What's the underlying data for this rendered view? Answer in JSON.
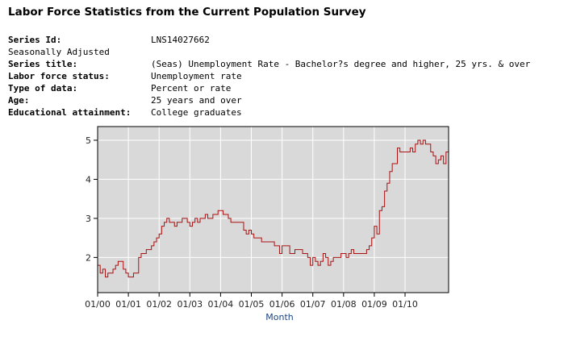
{
  "page": {
    "title": "Labor Force Statistics from the Current Population Survey"
  },
  "series_info": [
    {
      "label": "Series Id:",
      "value": "LNS14027662",
      "bold": true
    },
    {
      "label": "Seasonally Adjusted",
      "value": "",
      "bold": false
    },
    {
      "label": "Series title:",
      "value": "(Seas) Unemployment Rate - Bachelor?s degree and higher, 25 yrs. & over",
      "bold": true
    },
    {
      "label": "Labor force status:",
      "value": "Unemployment rate",
      "bold": true
    },
    {
      "label": "Type of data:",
      "value": "Percent or rate",
      "bold": true
    },
    {
      "label": "Age:",
      "value": "25 years and over",
      "bold": true
    },
    {
      "label": "Educational attainment:",
      "value": "College graduates",
      "bold": true
    }
  ],
  "chart_data": {
    "type": "line",
    "title": "",
    "xlabel": "Month",
    "ylabel": "",
    "x_tick_labels": [
      "01/00",
      "01/01",
      "01/02",
      "01/03",
      "01/04",
      "01/05",
      "01/06",
      "01/07",
      "01/08",
      "01/09",
      "01/10"
    ],
    "y_ticks": [
      2,
      3,
      4,
      5
    ],
    "ylim": [
      1.1,
      5.35
    ],
    "grid": true,
    "line_color": "#aa1111",
    "plot_bg": "#d9d9d9",
    "x_start": "01/00",
    "series": [
      {
        "name": "Unemployment Rate - Bachelor's degree and higher, 25 yrs. & over",
        "values": [
          1.8,
          1.6,
          1.7,
          1.5,
          1.6,
          1.6,
          1.7,
          1.8,
          1.9,
          1.9,
          1.7,
          1.6,
          1.5,
          1.5,
          1.6,
          1.6,
          2.0,
          2.1,
          2.1,
          2.2,
          2.2,
          2.3,
          2.4,
          2.5,
          2.6,
          2.8,
          2.9,
          3.0,
          2.9,
          2.9,
          2.8,
          2.9,
          2.9,
          3.0,
          3.0,
          2.9,
          2.8,
          2.9,
          3.0,
          2.9,
          3.0,
          3.0,
          3.1,
          3.0,
          3.0,
          3.1,
          3.1,
          3.2,
          3.2,
          3.1,
          3.1,
          3.0,
          2.9,
          2.9,
          2.9,
          2.9,
          2.9,
          2.7,
          2.6,
          2.7,
          2.6,
          2.5,
          2.5,
          2.5,
          2.4,
          2.4,
          2.4,
          2.4,
          2.4,
          2.3,
          2.3,
          2.1,
          2.3,
          2.3,
          2.3,
          2.1,
          2.1,
          2.2,
          2.2,
          2.2,
          2.1,
          2.1,
          2.0,
          1.8,
          2.0,
          1.9,
          1.8,
          1.9,
          2.1,
          2.0,
          1.8,
          1.9,
          2.0,
          2.0,
          2.0,
          2.1,
          2.1,
          2.0,
          2.1,
          2.2,
          2.1,
          2.1,
          2.1,
          2.1,
          2.1,
          2.2,
          2.3,
          2.5,
          2.8,
          2.6,
          3.2,
          3.3,
          3.7,
          3.9,
          4.2,
          4.4,
          4.4,
          4.8,
          4.7,
          4.7,
          4.7,
          4.7,
          4.8,
          4.7,
          4.9,
          5.0,
          4.9,
          5.0,
          4.9,
          4.9,
          4.7,
          4.6,
          4.4,
          4.5,
          4.6,
          4.4,
          4.7
        ]
      }
    ]
  }
}
